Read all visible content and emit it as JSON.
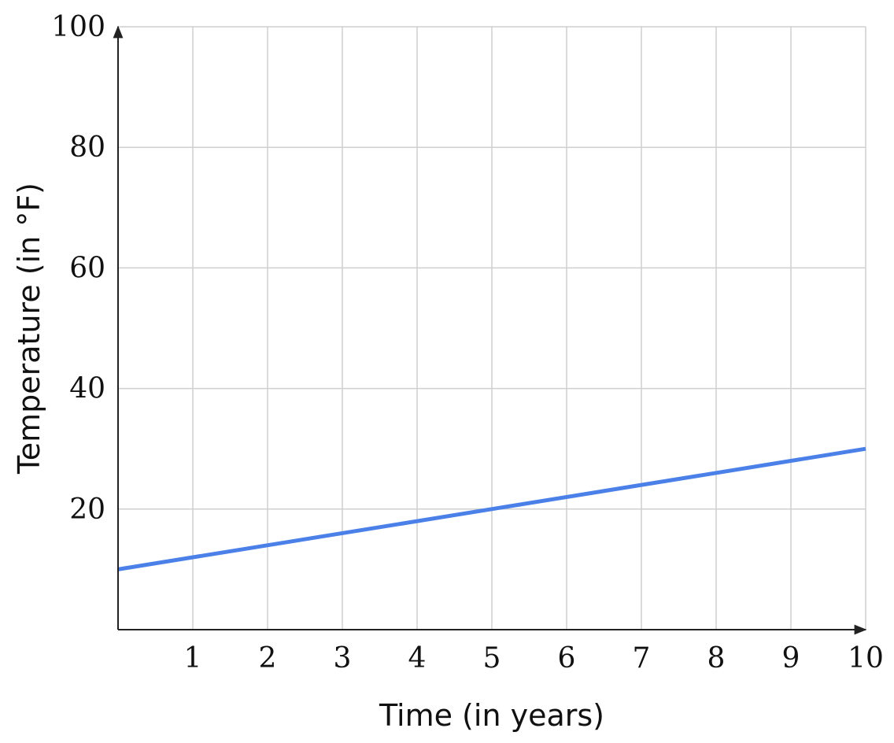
{
  "chart_data": {
    "type": "line",
    "title": "",
    "xlabel": "Time (in years)",
    "ylabel": "Temperature (in °F)",
    "xlim": [
      0,
      10
    ],
    "ylim": [
      0,
      100
    ],
    "x_ticks": [
      1,
      2,
      3,
      4,
      5,
      6,
      7,
      8,
      9,
      10
    ],
    "y_ticks": [
      20,
      40,
      60,
      80,
      100
    ],
    "grid": true,
    "x_grid_step": 1,
    "y_grid_step": 20,
    "legend": "none",
    "series": [
      {
        "color": "#4a80e8",
        "x": [
          0,
          10
        ],
        "y": [
          10,
          30
        ]
      }
    ]
  }
}
